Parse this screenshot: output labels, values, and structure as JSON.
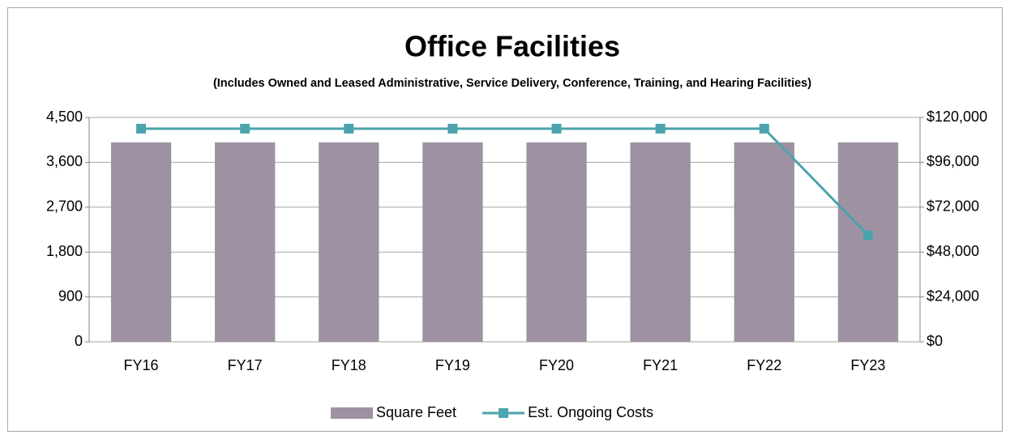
{
  "chart_data": {
    "type": "combo",
    "title": "Office Facilities",
    "subtitle": "(Includes Owned and Leased Administrative, Service Delivery, Conference, Training, and Hearing Facilities)",
    "categories": [
      "FY16",
      "FY17",
      "FY18",
      "FY19",
      "FY20",
      "FY21",
      "FY22",
      "FY23"
    ],
    "series": [
      {
        "name": "Square Feet",
        "type": "bar",
        "color": "#9e91a2",
        "values": [
          4000,
          4000,
          4000,
          4000,
          4000,
          4000,
          4000,
          4000
        ]
      },
      {
        "name": "Est. Ongoing Costs",
        "type": "line",
        "axis": "y2",
        "color": "#4ba3ad",
        "values": [
          114000,
          114000,
          114000,
          114000,
          114000,
          114000,
          114000,
          57000
        ]
      }
    ],
    "ylim": [
      0,
      4500
    ],
    "yticks": [
      0,
      900,
      {
        "value": 1800,
        "label": "1,800"
      },
      {
        "value": 2700,
        "label": "2,700"
      },
      {
        "value": 3600,
        "label": "3,600"
      },
      {
        "value": 4500,
        "label": "4,500"
      }
    ],
    "y2lim": [
      0,
      120000
    ],
    "y2ticks": [
      {
        "value": 0,
        "label": "$0"
      },
      {
        "value": 24000,
        "label": "$24,000"
      },
      {
        "value": 48000,
        "label": "$48,000"
      },
      {
        "value": 72000,
        "label": "$72,000"
      },
      {
        "value": 96000,
        "label": "$96,000"
      },
      {
        "value": 120000,
        "label": "$120,000"
      }
    ],
    "grid": true,
    "legend": "bottom"
  }
}
